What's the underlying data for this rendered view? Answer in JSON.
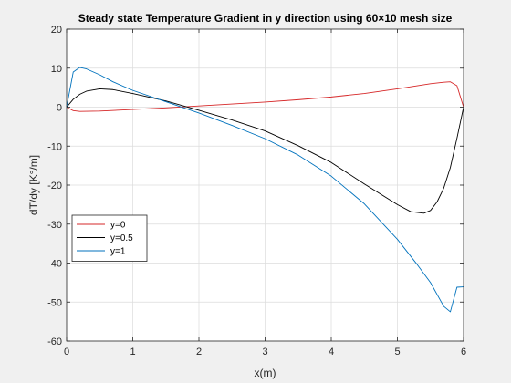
{
  "chart_data": {
    "type": "line",
    "title": "Steady state Temperature Gradient in y direction using 60×10 mesh size",
    "xlabel": "x(m)",
    "ylabel": "dT/dy [K°/m]",
    "xlim": [
      0,
      6
    ],
    "ylim": [
      -60,
      20
    ],
    "xticks": [
      0,
      1,
      2,
      3,
      4,
      5,
      6
    ],
    "yticks": [
      -60,
      -50,
      -40,
      -30,
      -20,
      -10,
      0,
      10,
      20
    ],
    "grid": true,
    "legend_position": "bottom-left",
    "series": [
      {
        "name": "y=0",
        "color": "#d62728",
        "x": [
          0,
          0.1,
          0.2,
          0.5,
          1,
          1.5,
          2,
          2.5,
          3,
          3.5,
          4,
          4.5,
          5,
          5.5,
          5.7,
          5.8,
          5.9,
          6.0
        ],
        "y": [
          0,
          -0.9,
          -1.1,
          -1.0,
          -0.6,
          -0.2,
          0.3,
          0.8,
          1.3,
          1.9,
          2.6,
          3.5,
          4.7,
          6.0,
          6.4,
          6.5,
          5.5,
          0
        ]
      },
      {
        "name": "y=0.5",
        "color": "#000000",
        "x": [
          0,
          0.1,
          0.2,
          0.3,
          0.5,
          0.7,
          1,
          1.5,
          2,
          2.5,
          3,
          3.5,
          4,
          4.5,
          5,
          5.2,
          5.4,
          5.5,
          5.6,
          5.7,
          5.8,
          5.9,
          6.0
        ],
        "y": [
          0,
          2.0,
          3.3,
          4.1,
          4.7,
          4.5,
          3.5,
          1.6,
          -0.8,
          -3.3,
          -6.1,
          -9.9,
          -14.2,
          -19.7,
          -25.0,
          -26.8,
          -27.2,
          -26.5,
          -24.3,
          -20.8,
          -15.5,
          -8.0,
          0
        ]
      },
      {
        "name": "y=1",
        "color": "#0072bd",
        "x": [
          0,
          0.1,
          0.2,
          0.3,
          0.5,
          0.7,
          1,
          1.5,
          2,
          2.5,
          3,
          3.5,
          4,
          4.5,
          5,
          5.3,
          5.5,
          5.7,
          5.8,
          5.9,
          6.0
        ],
        "y": [
          0,
          9.0,
          10.2,
          9.8,
          8.3,
          6.5,
          4.3,
          1.4,
          -1.5,
          -4.7,
          -8.1,
          -12.3,
          -17.7,
          -24.8,
          -33.9,
          -40.4,
          -45.0,
          -51.1,
          -52.5,
          -46.2,
          -46.1
        ]
      }
    ]
  }
}
